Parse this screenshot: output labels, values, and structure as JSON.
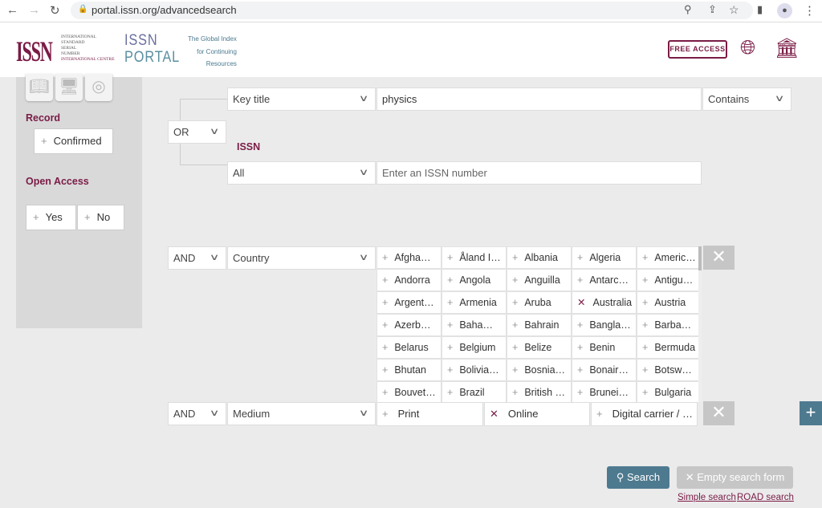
{
  "browser": {
    "url": "portal.issn.org/advancedsearch"
  },
  "header": {
    "logo_text": "ISSN",
    "org_lines": [
      "INTERNATIONAL",
      "STANDARD",
      "SERIAL",
      "NUMBER",
      "INTERNATIONAL CENTRE"
    ],
    "portal_line1": "ISSN",
    "portal_line2": "PORTAL",
    "tagline": [
      "The Global Index",
      "for Continuing",
      "Resources"
    ],
    "free_access": "FREE ACCESS"
  },
  "sidebar": {
    "record_heading": "Record",
    "confirmed": "Confirmed",
    "open_access_heading": "Open Access",
    "yes": "Yes",
    "no": "No"
  },
  "query": {
    "row1": {
      "operator": "OR",
      "field": "Key title",
      "value": "physics",
      "match": "Contains"
    },
    "row2": {
      "label": "ISSN",
      "field": "All",
      "placeholder": "Enter an ISSN number"
    },
    "row3": {
      "operator": "AND",
      "field": "Country",
      "countries": [
        {
          "name": "Afgha…",
          "selected": false
        },
        {
          "name": "Åland I…",
          "selected": false
        },
        {
          "name": "Albania",
          "selected": false
        },
        {
          "name": "Algeria",
          "selected": false
        },
        {
          "name": "Americ…",
          "selected": false
        },
        {
          "name": "Andorra",
          "selected": false
        },
        {
          "name": "Angola",
          "selected": false
        },
        {
          "name": "Anguilla",
          "selected": false
        },
        {
          "name": "Antarc…",
          "selected": false
        },
        {
          "name": "Antigu…",
          "selected": false
        },
        {
          "name": "Argent…",
          "selected": false
        },
        {
          "name": "Armenia",
          "selected": false
        },
        {
          "name": "Aruba",
          "selected": false
        },
        {
          "name": "Australia",
          "selected": true
        },
        {
          "name": "Austria",
          "selected": false
        },
        {
          "name": "Azerb…",
          "selected": false
        },
        {
          "name": "Baha…",
          "selected": false
        },
        {
          "name": "Bahrain",
          "selected": false
        },
        {
          "name": "Bangla…",
          "selected": false
        },
        {
          "name": "Barba…",
          "selected": false
        },
        {
          "name": "Belarus",
          "selected": false
        },
        {
          "name": "Belgium",
          "selected": false
        },
        {
          "name": "Belize",
          "selected": false
        },
        {
          "name": "Benin",
          "selected": false
        },
        {
          "name": "Bermuda",
          "selected": false
        },
        {
          "name": "Bhutan",
          "selected": false
        },
        {
          "name": "Bolivia…",
          "selected": false
        },
        {
          "name": "Bosnia…",
          "selected": false
        },
        {
          "name": "Bonair…",
          "selected": false
        },
        {
          "name": "Botsw…",
          "selected": false
        },
        {
          "name": "Bouvet…",
          "selected": false
        },
        {
          "name": "Brazil",
          "selected": false
        },
        {
          "name": "British …",
          "selected": false
        },
        {
          "name": "Brunei…",
          "selected": false
        },
        {
          "name": "Bulgaria",
          "selected": false
        }
      ]
    },
    "row4": {
      "operator": "AND",
      "field": "Medium",
      "options": [
        {
          "name": "Print",
          "selected": false
        },
        {
          "name": "Online",
          "selected": true
        },
        {
          "name": "Digital carrier / …",
          "selected": false
        }
      ]
    }
  },
  "actions": {
    "search": "Search",
    "empty": "Empty search form",
    "simple": "Simple search",
    "road": "ROAD search"
  },
  "colors": {
    "brand": "#7a1c46",
    "accent": "#4e7a8f"
  }
}
